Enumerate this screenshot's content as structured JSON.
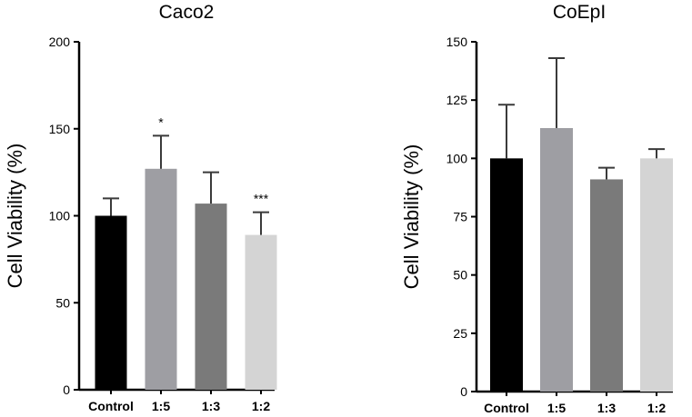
{
  "chart_data": [
    {
      "type": "bar",
      "title": "Caco2",
      "ylabel": "Cell  Viability  (%)",
      "xlabel": "",
      "categories": [
        "Control",
        "1:5",
        "1:3",
        "1:2"
      ],
      "values": [
        100,
        127,
        107,
        89
      ],
      "errors": [
        10,
        19,
        18,
        13
      ],
      "significance": [
        "",
        "*",
        "",
        "***"
      ],
      "colors": [
        "#000000",
        "#9e9ea3",
        "#7a7a7a",
        "#d4d4d4"
      ],
      "ylim": [
        0,
        200
      ],
      "yticks": [
        0,
        50,
        100,
        150,
        200
      ],
      "ytick_labels": [
        "0",
        "50",
        "100",
        "150",
        "200"
      ]
    },
    {
      "type": "bar",
      "title": "CoEpI",
      "ylabel": "Cell  Viability  (%)",
      "xlabel": "",
      "categories": [
        "Control",
        "1:5",
        "1:3",
        "1:2"
      ],
      "values": [
        100,
        113,
        91,
        100
      ],
      "errors": [
        23,
        30,
        5,
        4
      ],
      "significance": [
        "",
        "",
        "",
        ""
      ],
      "colors": [
        "#000000",
        "#9e9ea3",
        "#7a7a7a",
        "#d4d4d4"
      ],
      "ylim": [
        0,
        150
      ],
      "yticks": [
        0,
        25,
        50,
        75,
        100,
        125,
        150
      ],
      "ytick_labels": [
        "0",
        "25",
        "50",
        "75",
        "100",
        "125",
        "150"
      ]
    }
  ]
}
